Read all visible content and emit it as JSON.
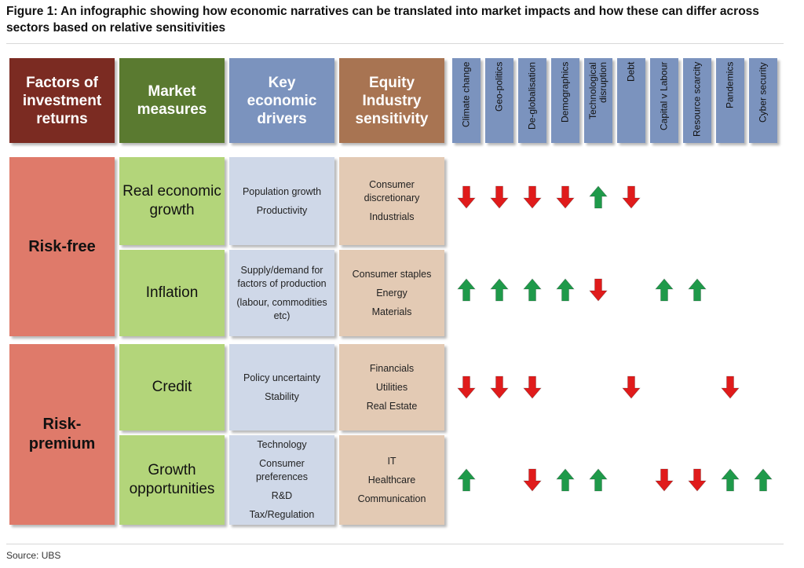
{
  "figure": {
    "title": "Figure 1: An infographic showing how economic narratives can be translated into market impacts and how these can differ across sectors based on relative sensitivities",
    "source": "Source: UBS"
  },
  "headers": {
    "factors": "Factors of investment returns",
    "measures": "Market measures",
    "drivers": "Key economic drivers",
    "sensitivity": "Equity Industry sensitivity"
  },
  "narratives": [
    "Climate change",
    "Geo-politics",
    "De-globalisation",
    "Demographics",
    "Technological disruption",
    "Debt",
    "Capital v Labour",
    "Resource scarcity",
    "Pandemics",
    "Cyber security"
  ],
  "factors": [
    {
      "label": "Risk-free"
    },
    {
      "label": "Risk-premium"
    }
  ],
  "rows": [
    {
      "measure": "Real economic growth",
      "drivers": [
        "Population growth",
        "Productivity"
      ],
      "sectors": [
        "Consumer discretionary",
        "Industrials"
      ],
      "impacts": [
        "down",
        "down",
        "down",
        "down",
        "up",
        "down",
        "",
        "",
        "",
        ""
      ]
    },
    {
      "measure": "Inflation",
      "drivers": [
        "Supply/demand for factors of production",
        "(labour, commodities etc)"
      ],
      "sectors": [
        "Consumer staples",
        "Energy",
        "Materials"
      ],
      "impacts": [
        "up",
        "up",
        "up",
        "up",
        "down",
        "",
        "up",
        "up",
        "",
        ""
      ]
    },
    {
      "measure": "Credit",
      "drivers": [
        "Policy uncertainty",
        "Stability"
      ],
      "sectors": [
        "Financials",
        "Utilities",
        "Real Estate"
      ],
      "impacts": [
        "down",
        "down",
        "down",
        "",
        "",
        "down",
        "",
        "",
        "down",
        ""
      ]
    },
    {
      "measure": "Growth opportunities",
      "drivers": [
        "Technology",
        "Consumer preferences",
        "R&D",
        "Tax/Regulation"
      ],
      "sectors": [
        "IT",
        "Healthcare",
        "Communication"
      ],
      "impacts": [
        "up",
        "",
        "down",
        "up",
        "up",
        "",
        "down",
        "down",
        "up",
        "up"
      ]
    }
  ],
  "colors": {
    "factor_header": "#7b2b22",
    "measure_header": "#5a7a30",
    "driver_header": "#7b93be",
    "sector_header": "#a87452",
    "factor_cell": "#df7a6a",
    "measure_cell": "#b3d57a",
    "driver_cell": "#cfd8e8",
    "sector_cell": "#e3cab4",
    "arrow_up": "#1f9a4a",
    "arrow_down": "#e01b1b"
  }
}
